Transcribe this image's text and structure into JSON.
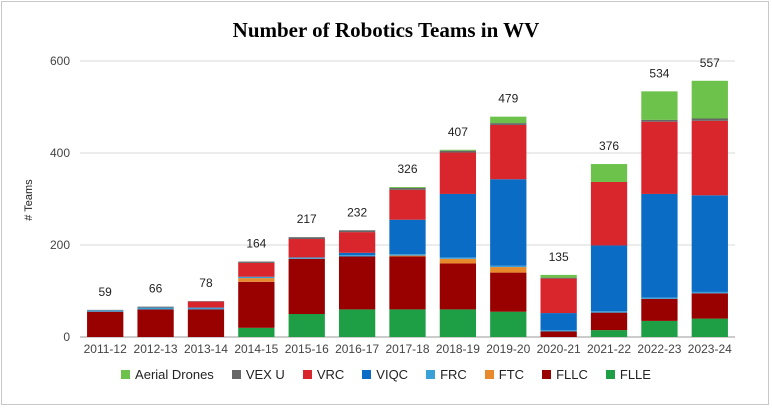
{
  "chart_data": {
    "type": "bar",
    "stacked": true,
    "title": "Number of Robotics Teams in WV",
    "xlabel": "",
    "ylabel": "# Teams",
    "ylim": [
      0,
      600
    ],
    "yticks": [
      0,
      200,
      400,
      600
    ],
    "grid": true,
    "legend_position": "bottom",
    "categories": [
      "2011-12",
      "2012-13",
      "2013-14",
      "2014-15",
      "2015-16",
      "2016-17",
      "2017-18",
      "2018-19",
      "2019-20",
      "2020-21",
      "2021-22",
      "2022-23",
      "2023-24"
    ],
    "totals": [
      59,
      66,
      78,
      164,
      217,
      232,
      326,
      407,
      479,
      135,
      376,
      534,
      557
    ],
    "series": [
      {
        "name": "FLLE",
        "color": "#1e9e45",
        "values": [
          0,
          0,
          0,
          20,
          50,
          60,
          60,
          60,
          55,
          0,
          15,
          35,
          40
        ]
      },
      {
        "name": "FLLC",
        "color": "#990000",
        "values": [
          55,
          60,
          60,
          100,
          120,
          115,
          115,
          100,
          85,
          12,
          38,
          48,
          55
        ]
      },
      {
        "name": "FTC",
        "color": "#e8892b",
        "values": [
          0,
          0,
          0,
          8,
          0,
          0,
          2,
          10,
          12,
          0,
          0,
          0,
          0
        ]
      },
      {
        "name": "FRC",
        "color": "#3aa0d8",
        "values": [
          3,
          4,
          4,
          3,
          3,
          3,
          3,
          3,
          3,
          3,
          3,
          3,
          3
        ]
      },
      {
        "name": "VIQC",
        "color": "#0a6cc4",
        "values": [
          0,
          0,
          0,
          0,
          0,
          5,
          75,
          138,
          188,
          37,
          143,
          225,
          210
        ]
      },
      {
        "name": "VRC",
        "color": "#d9262d",
        "values": [
          0,
          0,
          13,
          30,
          40,
          45,
          65,
          90,
          118,
          75,
          138,
          157,
          162
        ]
      },
      {
        "name": "VEX U",
        "color": "#666666",
        "values": [
          1,
          2,
          1,
          3,
          4,
          4,
          4,
          4,
          4,
          2,
          0,
          4,
          5
        ]
      },
      {
        "name": "Aerial Drones",
        "color": "#6cc24a",
        "values": [
          0,
          0,
          0,
          0,
          0,
          0,
          2,
          2,
          14,
          6,
          39,
          62,
          82
        ]
      }
    ]
  }
}
